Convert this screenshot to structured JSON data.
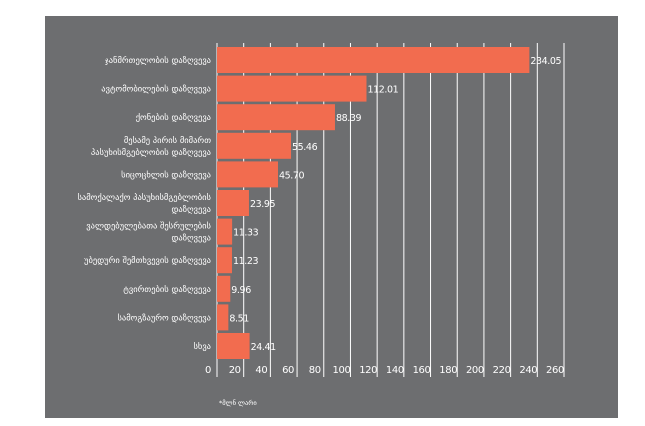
{
  "chart_data": {
    "type": "bar",
    "orientation": "horizontal",
    "categories": [
      [
        "ჯანმრთელობის დაზღვევა"
      ],
      [
        "ავტომობილების დაზღვევა"
      ],
      [
        "ქონების დაზღვევა"
      ],
      [
        "მესამე პირის მიმართ",
        "პასუხისმგებლობის დაზღვევა"
      ],
      [
        "სიცოცხლის დაზღვევა"
      ],
      [
        "სამოქალაქო პასუხისმგებლობის",
        "დაზღვევა"
      ],
      [
        "ვალდებულებათა შესრულების",
        "დაზღვევა"
      ],
      [
        "უბედური შემთხვევის დაზღვევა"
      ],
      [
        "ტვირთების დაზღვევა"
      ],
      [
        "სამოგზაურო დაზღვევა"
      ],
      [
        "სხვა"
      ]
    ],
    "values": [
      234.05,
      112.01,
      88.39,
      55.46,
      45.7,
      23.95,
      11.33,
      11.23,
      9.96,
      8.51,
      24.41
    ],
    "value_labels": [
      "234.05",
      "112.01",
      "88.39",
      "55.46",
      "45.70",
      "23.95",
      "11.33",
      "11.23",
      "9.96",
      "8.51",
      "24.41"
    ],
    "xticks": [
      0,
      20,
      40,
      60,
      80,
      100,
      120,
      140,
      160,
      180,
      200,
      220,
      240,
      260
    ],
    "xlim": [
      0,
      260
    ],
    "grid": true,
    "footnote": "*მლნ ლარი",
    "bar_color": "#f26c4f",
    "background_color": "#6d6e70"
  }
}
